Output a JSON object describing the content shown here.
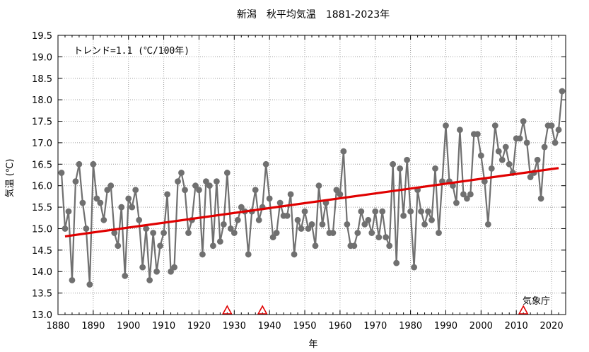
{
  "chart_data": {
    "type": "line",
    "title": "新潟　秋平均気温　1881-2023年",
    "xlabel": "年",
    "ylabel": "気温 (℃)",
    "xlim": [
      1880,
      2024
    ],
    "ylim": [
      13.0,
      19.5
    ],
    "x_ticks": [
      1880,
      1890,
      1900,
      1910,
      1920,
      1930,
      1940,
      1950,
      1960,
      1970,
      1980,
      1990,
      2000,
      2010,
      2020
    ],
    "y_ticks": [
      13.0,
      13.5,
      14.0,
      14.5,
      15.0,
      15.5,
      16.0,
      16.5,
      17.0,
      17.5,
      18.0,
      18.5,
      19.0,
      19.5
    ],
    "grid": true,
    "trend_label": "トレンド=1.1 (℃/100年)",
    "source_label": "気象庁",
    "series": [
      {
        "color": "#707070",
        "x_start": 1881,
        "values": [
          16.3,
          15.0,
          15.4,
          13.8,
          16.1,
          16.5,
          15.6,
          15.0,
          13.7,
          16.5,
          15.7,
          15.6,
          15.2,
          15.9,
          16.0,
          14.9,
          14.6,
          15.5,
          13.9,
          15.7,
          15.5,
          15.9,
          15.2,
          14.1,
          15.0,
          13.8,
          14.9,
          14.0,
          14.6,
          14.9,
          15.8,
          14.0,
          14.1,
          16.1,
          16.3,
          15.9,
          14.9,
          15.2,
          16.0,
          15.9,
          14.4,
          16.1,
          16.0,
          14.6,
          16.1,
          14.7,
          15.1,
          16.3,
          15.0,
          14.9,
          15.2,
          15.5,
          15.4,
          14.4,
          15.4,
          15.9,
          15.2,
          15.5,
          16.5,
          15.7,
          14.8,
          14.9,
          15.6,
          15.3,
          15.3,
          15.8,
          14.4,
          15.2,
          15.0,
          15.4,
          15.0,
          15.1,
          14.6,
          16.0,
          15.1,
          15.6,
          14.9,
          14.9,
          15.9,
          15.8,
          16.8,
          15.1,
          14.6,
          14.6,
          14.9,
          15.4,
          15.1,
          15.2,
          14.9,
          15.4,
          14.8,
          15.4,
          14.8,
          14.6,
          16.5,
          14.2,
          16.4,
          15.3,
          16.6,
          15.4,
          14.1,
          15.9,
          15.4,
          15.1,
          15.4,
          15.2,
          16.4,
          14.9,
          16.1,
          17.4,
          16.1,
          16.0,
          15.6,
          17.3,
          15.8,
          15.7,
          15.8,
          17.2,
          17.2,
          16.7,
          16.1,
          15.1,
          16.4,
          17.4,
          16.8,
          16.6,
          16.9,
          16.5,
          16.3,
          17.1,
          17.1,
          17.5,
          17.0,
          16.2,
          16.3,
          16.6,
          15.7,
          16.9,
          17.4,
          17.4,
          17.0,
          17.3,
          18.2
        ]
      }
    ],
    "trend": {
      "color": "#e00000",
      "x": [
        1882,
        2022
      ],
      "y": [
        14.82,
        16.41
      ]
    },
    "markers": {
      "color": "#e00000",
      "x": [
        1928,
        1938,
        2012
      ]
    }
  }
}
